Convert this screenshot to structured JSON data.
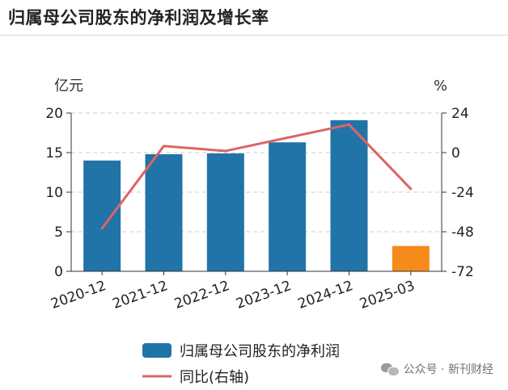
{
  "title": "归属母公司股东的净利润及增长率",
  "watermark": "公众号 · 新刊财经",
  "icons": {
    "watermark": "wechat-icon"
  },
  "colors": {
    "bar": "#2174a8",
    "bar_highlight": "#f68a1a",
    "line": "#de6464",
    "grid": "#cccccc"
  },
  "chart_data": {
    "type": "bar",
    "categories": [
      "2020-12",
      "2021-12",
      "2022-12",
      "2023-12",
      "2024-12",
      "2025-03"
    ],
    "series": [
      {
        "name": "归属母公司股东的净利润",
        "type": "bar",
        "axis": "left",
        "values": [
          14.0,
          14.8,
          14.9,
          16.3,
          19.1,
          3.2
        ]
      },
      {
        "name": "同比(右轴)",
        "type": "line",
        "axis": "right",
        "values": [
          -46,
          4,
          1,
          9,
          17,
          -22
        ]
      }
    ],
    "ylabel": "亿元",
    "y2label": "%",
    "ylim": [
      0,
      20
    ],
    "y2lim": [
      -72,
      24
    ],
    "yticks": [
      0,
      5,
      10,
      15,
      20
    ],
    "y2ticks": [
      -72,
      -48,
      -24,
      0,
      24
    ],
    "grid": true,
    "legend": "bottom"
  }
}
